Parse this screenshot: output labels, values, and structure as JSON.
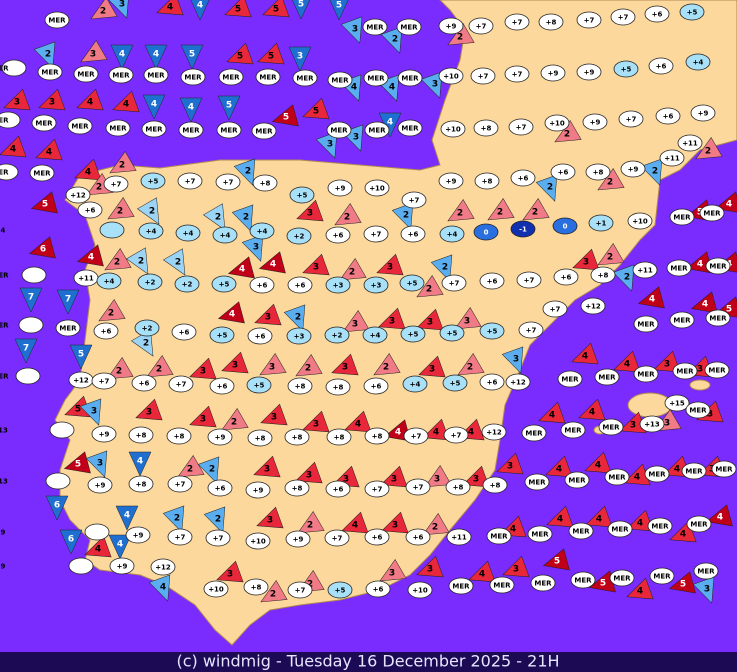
{
  "ovals": [
    "MER",
    "+9",
    "+7",
    "+7",
    "+8",
    "+7",
    "+7",
    "+6",
    "+5",
    "MER",
    "MER",
    "MER",
    "MER",
    "MER",
    "MER",
    "MER",
    "MER",
    "MER",
    "MER",
    "MER",
    "MER",
    "MER",
    "MER",
    "+10",
    "+7",
    "+7",
    "+9",
    "+9",
    "+5",
    "+6",
    "+4",
    "MER",
    "MER",
    "MER",
    "MER",
    "MER",
    "MER",
    "MER",
    "MER",
    "MER",
    "MER",
    "MER",
    "+10",
    "+8",
    "+7",
    "+10",
    "+9",
    "+7",
    "+6",
    "+9",
    "MER",
    "MER",
    "+12",
    "+6",
    "+7",
    "+5",
    "+7",
    "+7",
    "+8",
    "+5",
    "+9",
    "+10",
    "+9",
    "+8",
    "+6",
    "+6",
    "+8",
    "+9",
    "+11",
    "+11",
    "+7",
    "+4",
    "+4",
    "+4",
    "+4",
    "+4",
    "+2",
    "+6",
    "+7",
    "+6",
    "+4",
    "0",
    "-1",
    "0",
    "+1",
    "+10",
    "MER",
    "MER",
    "MER",
    "+11",
    "+4",
    "+2",
    "+2",
    "+5",
    "+6",
    "+6",
    "+3",
    "+3",
    "+5",
    "+7",
    "+6",
    "+7",
    "+6",
    "+8",
    "+11",
    "MER",
    "MER",
    "MER",
    "MER",
    "+6",
    "+2",
    "+6",
    "+5",
    "+6",
    "+3",
    "+2",
    "+4",
    "+5",
    "+5",
    "+5",
    "+7",
    "+12",
    "+7",
    "MER",
    "MER",
    "MER",
    "MER",
    "+12",
    "+7",
    "+6",
    "+7",
    "+6",
    "+5",
    "+8",
    "+8",
    "+6",
    "+4",
    "+5",
    "+6",
    "+12",
    "MER",
    "MER",
    "MER",
    "MER",
    "MER",
    "+15",
    "+13",
    "+9",
    "+8",
    "+8",
    "+9",
    "+8",
    "+8",
    "+8",
    "+8",
    "+7",
    "+7",
    "+12",
    "MER",
    "MER",
    "MER",
    "+13",
    "MER",
    "+13",
    "+9",
    "+8",
    "+7",
    "+6",
    "+9",
    "+8",
    "+6",
    "+7",
    "+7",
    "+8",
    "+8",
    "MER",
    "MER",
    "MER",
    "MER",
    "MER",
    "MER",
    "+9",
    "+9",
    "+7",
    "+7",
    "+10",
    "+9",
    "+7",
    "+6",
    "+6",
    "+11",
    "MER",
    "MER",
    "MER",
    "MER",
    "MER",
    "MER",
    "+9",
    "+9",
    "+12",
    "+10",
    "+8",
    "+7",
    "+5",
    "+6",
    "+10",
    "MER",
    "MER",
    "MER",
    "MER",
    "MER",
    "MER",
    "MER"
  ],
  "winds": [
    "2",
    "3",
    "4",
    "4",
    "5",
    "5",
    "5",
    "5",
    "3",
    "2",
    "2",
    "2",
    "3",
    "4",
    "4",
    "5",
    "5",
    "5",
    "3",
    "4",
    "4",
    "3",
    "3",
    "3",
    "4",
    "4",
    "4",
    "4",
    "5",
    "5",
    "5",
    "3",
    "3",
    "4",
    "4",
    "4",
    "4",
    "2",
    "2",
    "2",
    "2",
    "2",
    "2",
    "2",
    "5",
    "2",
    "2",
    "2",
    "2",
    "3",
    "2",
    "2",
    "2",
    "2",
    "2",
    "2",
    "5",
    "4",
    "6",
    "4",
    "2",
    "2",
    "2",
    "3",
    "4",
    "4",
    "3",
    "2",
    "3",
    "2",
    "2",
    "3",
    "2",
    "2",
    "4",
    "4",
    "7",
    "7",
    "2",
    "2",
    "4",
    "3",
    "2",
    "3",
    "3",
    "3",
    "3",
    "4",
    "4",
    "5",
    "7",
    "5",
    "2",
    "2",
    "3",
    "3",
    "3",
    "2",
    "3",
    "2",
    "3",
    "2",
    "3",
    "4",
    "4",
    "3",
    "3",
    "5",
    "3",
    "3",
    "3",
    "2",
    "3",
    "3",
    "4",
    "4",
    "4",
    "4",
    "4",
    "4",
    "3",
    "3",
    "3",
    "5",
    "3",
    "4",
    "2",
    "2",
    "3",
    "3",
    "3",
    "3",
    "3",
    "3",
    "3",
    "4",
    "4",
    "4",
    "4",
    "3",
    "6",
    "6",
    "4",
    "2",
    "2",
    "3",
    "2",
    "4",
    "3",
    "2",
    "4",
    "4",
    "4",
    "4",
    "4",
    "4",
    "4",
    "4",
    "4",
    "3",
    "2",
    "2",
    "3",
    "3",
    "4",
    "3",
    "5",
    "5",
    "4",
    "5",
    "3"
  ],
  "footer": "(c) windmig - Tuesday 16 December 2025 - 21H"
}
